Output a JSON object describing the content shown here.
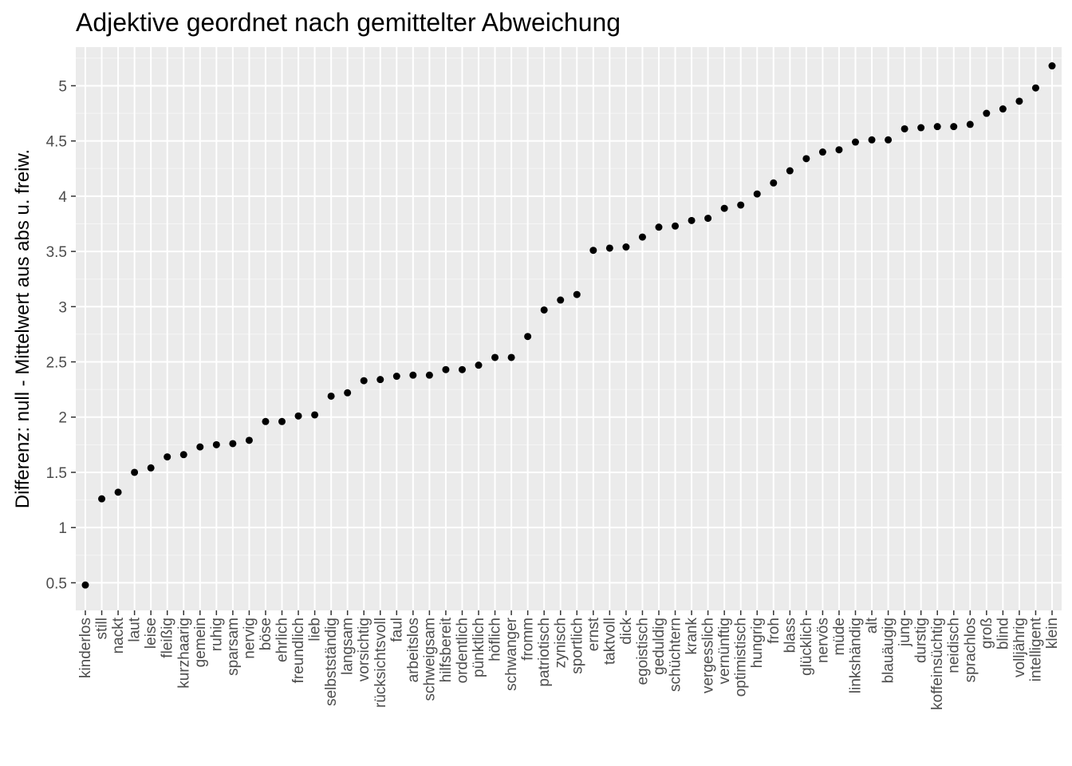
{
  "chart_data": {
    "type": "scatter",
    "title": "Adjektive geordnet nach gemittelter Abweichung",
    "xlabel": "",
    "ylabel": "Differenz: null - Mittelwert aus abs u. freiw.",
    "ylim": [
      0.25,
      5.35
    ],
    "yticks": [
      0.5,
      1,
      1.5,
      2,
      2.5,
      3,
      3.5,
      4,
      4.5,
      5
    ],
    "ytick_labels": [
      "0.5",
      "1",
      "1.5",
      "2",
      "2.5",
      "3",
      "3.5",
      "4",
      "4.5",
      "5"
    ],
    "grid": true,
    "categories": [
      "kinderlos",
      "still",
      "nackt",
      "laut",
      "leise",
      "fleißig",
      "kurzhaarig",
      "gemein",
      "ruhig",
      "sparsam",
      "nervig",
      "böse",
      "ehrlich",
      "freundlich",
      "lieb",
      "selbstständig",
      "langsam",
      "vorsichtig",
      "rücksichtsvoll",
      "faul",
      "arbeitslos",
      "schweigsam",
      "hilfsbereit",
      "ordentlich",
      "pünktlich",
      "höflich",
      "schwanger",
      "fromm",
      "patriotisch",
      "zynisch",
      "sportlich",
      "ernst",
      "taktvoll",
      "dick",
      "egoistisch",
      "geduldig",
      "schüchtern",
      "krank",
      "vergesslich",
      "vernünftig",
      "optimistisch",
      "hungrig",
      "froh",
      "blass",
      "glücklich",
      "nervös",
      "müde",
      "linkshändig",
      "alt",
      "blauäugig",
      "jung",
      "durstig",
      "koffeinsüchtig",
      "neidisch",
      "sprachlos",
      "groß",
      "blind",
      "volljährig",
      "intelligent",
      "klein"
    ],
    "values": [
      0.48,
      1.26,
      1.32,
      1.5,
      1.54,
      1.64,
      1.66,
      1.73,
      1.75,
      1.76,
      1.79,
      1.96,
      1.96,
      2.01,
      2.02,
      2.19,
      2.22,
      2.33,
      2.34,
      2.37,
      2.38,
      2.38,
      2.43,
      2.43,
      2.47,
      2.54,
      2.54,
      2.73,
      2.97,
      3.06,
      3.11,
      3.51,
      3.53,
      3.54,
      3.63,
      3.72,
      3.73,
      3.78,
      3.8,
      3.89,
      3.92,
      4.02,
      4.12,
      4.23,
      4.34,
      4.4,
      4.42,
      4.49,
      4.51,
      4.51,
      4.61,
      4.62,
      4.63,
      4.63,
      4.65,
      4.75,
      4.79,
      4.86,
      4.98,
      5.18
    ]
  }
}
